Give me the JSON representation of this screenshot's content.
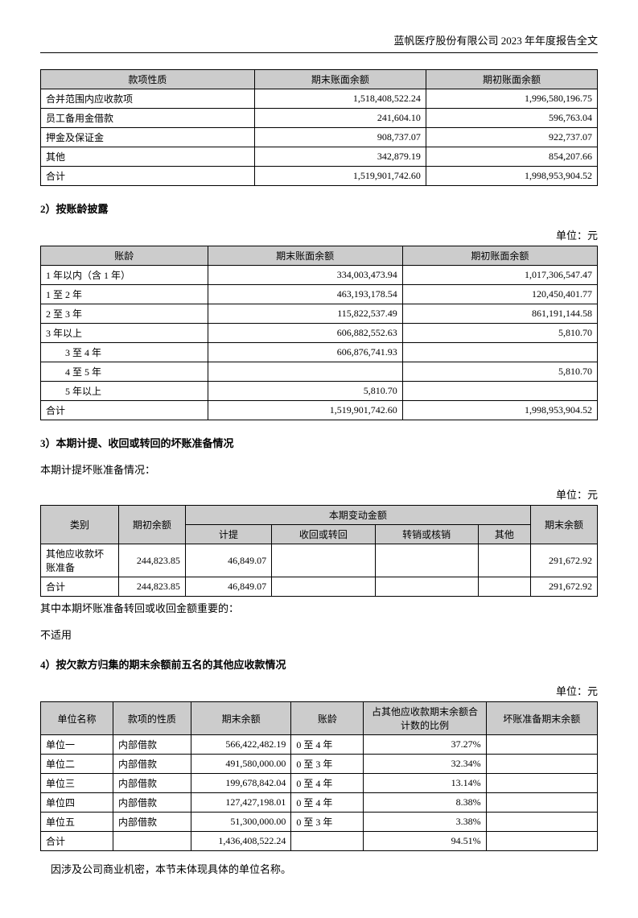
{
  "header": "蓝帆医疗股份有限公司 2023 年年度报告全文",
  "table1": {
    "headers": [
      "款项性质",
      "期末账面余额",
      "期初账面余额"
    ],
    "rows": [
      [
        "合并范围内应收款项",
        "1,518,408,522.24",
        "1,996,580,196.75"
      ],
      [
        "员工备用金借款",
        "241,604.10",
        "596,763.04"
      ],
      [
        "押金及保证金",
        "908,737.07",
        "922,737.07"
      ],
      [
        "其他",
        "342,879.19",
        "854,207.66"
      ],
      [
        "合计",
        "1,519,901,742.60",
        "1,998,953,904.52"
      ]
    ]
  },
  "section2": {
    "title": "2）按账龄披露",
    "unit": "单位：元",
    "headers": [
      "账龄",
      "期末账面余额",
      "期初账面余额"
    ],
    "rows": [
      {
        "label": "1 年以内（含 1 年）",
        "indent": false,
        "c1": "334,003,473.94",
        "c2": "1,017,306,547.47"
      },
      {
        "label": "1 至 2 年",
        "indent": false,
        "c1": "463,193,178.54",
        "c2": "120,450,401.77"
      },
      {
        "label": "2 至 3 年",
        "indent": false,
        "c1": "115,822,537.49",
        "c2": "861,191,144.58"
      },
      {
        "label": "3 年以上",
        "indent": false,
        "c1": "606,882,552.63",
        "c2": "5,810.70"
      },
      {
        "label": "3 至 4 年",
        "indent": true,
        "c1": "606,876,741.93",
        "c2": ""
      },
      {
        "label": "4 至 5 年",
        "indent": true,
        "c1": "",
        "c2": "5,810.70"
      },
      {
        "label": "5 年以上",
        "indent": true,
        "c1": "5,810.70",
        "c2": ""
      },
      {
        "label": "合计",
        "indent": false,
        "c1": "1,519,901,742.60",
        "c2": "1,998,953,904.52"
      }
    ]
  },
  "section3": {
    "title": "3）本期计提、收回或转回的坏账准备情况",
    "intro": "本期计提坏账准备情况：",
    "unit": "单位：元",
    "h_category": "类别",
    "h_begin": "期初余额",
    "h_change": "本期变动金额",
    "h_end": "期末余额",
    "sub_headers": [
      "计提",
      "收回或转回",
      "转销或核销",
      "其他"
    ],
    "rows": [
      [
        "其他应收款坏账准备",
        "244,823.85",
        "46,849.07",
        "",
        "",
        "",
        "291,672.92"
      ],
      [
        "合计",
        "244,823.85",
        "46,849.07",
        "",
        "",
        "",
        "291,672.92"
      ]
    ],
    "note1": "其中本期坏账准备转回或收回金额重要的：",
    "note2": "不适用"
  },
  "section4": {
    "title": "4）按欠款方归集的期末余额前五名的其他应收款情况",
    "unit": "单位：元",
    "headers": [
      "单位名称",
      "款项的性质",
      "期末余额",
      "账龄",
      "占其他应收款期末余额合计数的比例",
      "坏账准备期末余额"
    ],
    "rows": [
      [
        "单位一",
        "内部借款",
        "566,422,482.19",
        "0 至 4 年",
        "37.27%",
        ""
      ],
      [
        "单位二",
        "内部借款",
        "491,580,000.00",
        "0 至 3 年",
        "32.34%",
        ""
      ],
      [
        "单位三",
        "内部借款",
        "199,678,842.04",
        "0 至 4 年",
        "13.14%",
        ""
      ],
      [
        "单位四",
        "内部借款",
        "127,427,198.01",
        "0 至 4 年",
        "8.38%",
        ""
      ],
      [
        "单位五",
        "内部借款",
        "51,300,000.00",
        "0 至 3 年",
        "3.38%",
        ""
      ],
      [
        "合计",
        "",
        "1,436,408,522.24",
        "",
        "94.51%",
        ""
      ]
    ],
    "footer": "因涉及公司商业机密，本节未体现具体的单位名称。"
  }
}
